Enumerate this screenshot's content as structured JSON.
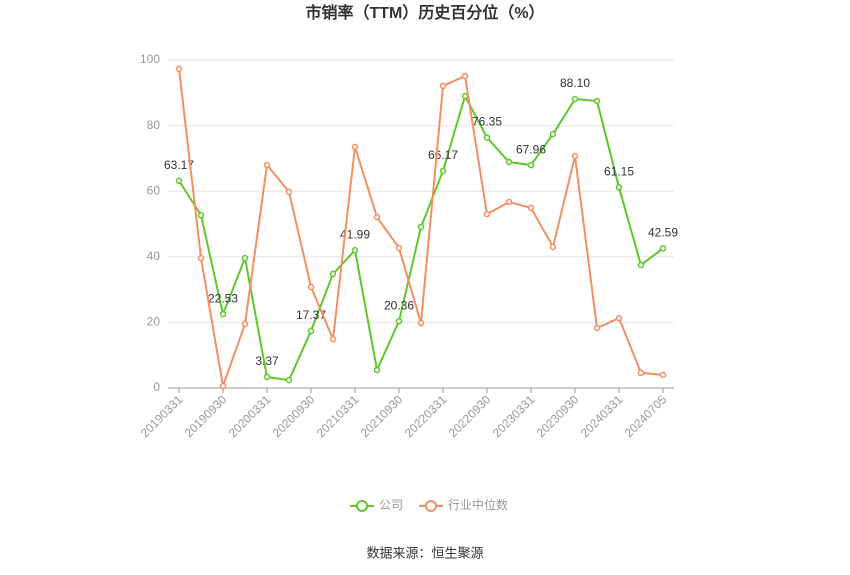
{
  "chart_data": {
    "type": "line",
    "title": "市销率（TTM）历史百分位（%）",
    "source": "数据来源：恒生聚源",
    "categories": [
      "20190331",
      null,
      "20190930",
      null,
      "20200331",
      null,
      "20200930",
      null,
      "20210331",
      null,
      "20210930",
      null,
      "20220331",
      null,
      "20220930",
      null,
      "20230331",
      null,
      "20230930",
      null,
      "20240331",
      null,
      "20240705"
    ],
    "series": [
      {
        "name": "公司",
        "color": "#5ec72b",
        "values": [
          63.17,
          52.7,
          22.53,
          39.6,
          3.37,
          2.4,
          17.37,
          34.8,
          41.99,
          5.5,
          20.36,
          49.1,
          66.17,
          89.0,
          76.35,
          68.9,
          67.96,
          77.4,
          88.1,
          87.5,
          61.15,
          37.5,
          42.59
        ],
        "value_labels": [
          "63.17",
          null,
          "22.53",
          null,
          "3.37",
          null,
          "17.37",
          null,
          "41.99",
          null,
          "20.36",
          null,
          "66.17",
          null,
          "76.35",
          null,
          "67.96",
          null,
          "88.10",
          null,
          "61.15",
          null,
          "42.59"
        ]
      },
      {
        "name": "行业中位数",
        "color": "#f39063",
        "values": [
          97.3,
          39.6,
          0.6,
          19.5,
          68.0,
          59.8,
          30.8,
          14.9,
          73.5,
          52.1,
          42.7,
          19.8,
          92.1,
          95.1,
          53.0,
          56.7,
          54.9,
          43.0,
          70.7,
          18.3,
          21.3,
          4.6,
          4.0
        ]
      }
    ],
    "ylim": [
      0,
      100
    ],
    "yticks": [
      0,
      20,
      40,
      60,
      80,
      100
    ],
    "grid": true,
    "legend": "bottom"
  }
}
